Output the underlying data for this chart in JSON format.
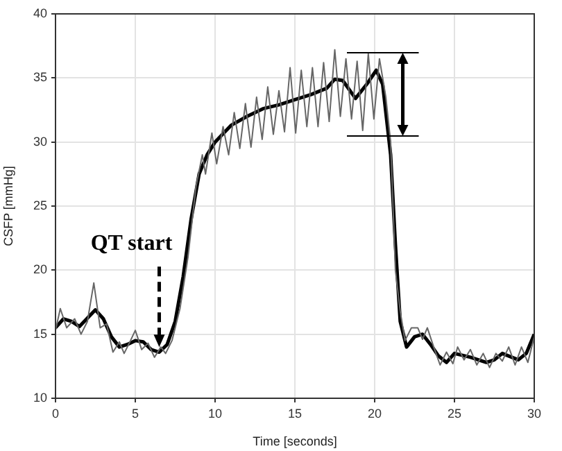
{
  "chart_data": {
    "type": "line",
    "xlabel": "Time [seconds]",
    "ylabel": "CSFP [mmHg]",
    "xlim": [
      0,
      30
    ],
    "xticks": [
      0,
      5,
      10,
      15,
      20,
      25,
      30
    ],
    "ylim": [
      10,
      40
    ],
    "yticks": [
      10,
      15,
      20,
      25,
      30,
      35,
      40
    ],
    "grid": true,
    "legend": false,
    "marker": "none",
    "line_style": "solid",
    "annotations": [
      {
        "text": "QT start",
        "x": 6.5,
        "y": 14
      }
    ],
    "series": [
      {
        "color": "#666666",
        "x": [
          0,
          0.3,
          0.7,
          1.2,
          1.6,
          2.0,
          2.4,
          2.8,
          3.2,
          3.6,
          4.0,
          4.3,
          4.7,
          5.0,
          5.4,
          5.8,
          6.2,
          6.6,
          6.9,
          7.3,
          7.8,
          8.3,
          8.8,
          9.2,
          9.4,
          9.8,
          10.1,
          10.5,
          10.85,
          11.2,
          11.55,
          11.9,
          12.25,
          12.6,
          12.95,
          13.3,
          13.65,
          14.0,
          14.35,
          14.7,
          15.05,
          15.4,
          15.75,
          16.1,
          16.45,
          16.8,
          17.15,
          17.5,
          17.85,
          18.2,
          18.55,
          18.9,
          19.25,
          19.6,
          19.95,
          20.3,
          20.7,
          21.0,
          21.3,
          21.6,
          21.9,
          22.3,
          22.7,
          23.0,
          23.3,
          23.7,
          24.1,
          24.5,
          24.9,
          25.2,
          25.6,
          26.0,
          26.4,
          26.8,
          27.2,
          27.6,
          28.0,
          28.4,
          28.8,
          29.2,
          29.6,
          30
        ],
        "values": [
          15.3,
          17.0,
          15.5,
          16.2,
          15.0,
          16.0,
          19.0,
          15.5,
          15.8,
          13.6,
          14.4,
          13.5,
          14.5,
          15.3,
          13.8,
          14.3,
          13.2,
          14.0,
          13.5,
          14.5,
          17,
          21,
          26.5,
          29.0,
          27.5,
          30.7,
          28.3,
          31.2,
          29.0,
          32.3,
          29.5,
          33.0,
          29.6,
          33.5,
          30.2,
          34.3,
          30.6,
          34.0,
          30.8,
          35.8,
          30.7,
          35.6,
          31.2,
          35.8,
          31.2,
          36.2,
          31.6,
          37.2,
          32.0,
          36.5,
          31.8,
          36.3,
          30.9,
          36.9,
          31.8,
          36.5,
          33.5,
          30,
          20,
          16.8,
          14.5,
          15.5,
          15.5,
          14.6,
          15.5,
          14.0,
          12.6,
          13.6,
          12.7,
          14.0,
          13.0,
          13.8,
          12.6,
          13.5,
          12.4,
          13.5,
          12.9,
          14.0,
          12.6,
          14.0,
          12.8,
          14.8
        ]
      },
      {
        "color": "#000000",
        "x": [
          0,
          0.5,
          1,
          1.5,
          2.5,
          3,
          3.5,
          4,
          4.5,
          5,
          5.5,
          6,
          6.5,
          7,
          7.5,
          8,
          8.5,
          9,
          9.5,
          10,
          11,
          12,
          13,
          14,
          15,
          16,
          17,
          17.5,
          18,
          18.8,
          19.5,
          20.1,
          20.5,
          21,
          21.3,
          21.6,
          22,
          22.5,
          23,
          23.5,
          24,
          24.5,
          25,
          26,
          27,
          27.5,
          28,
          29,
          29.5,
          30
        ],
        "values": [
          15.5,
          16.2,
          16.0,
          15.6,
          16.9,
          16.2,
          14.8,
          14.0,
          14.2,
          14.5,
          14.4,
          13.8,
          13.6,
          14.2,
          16,
          19.5,
          24,
          27.5,
          29,
          30,
          31.3,
          32,
          32.6,
          32.9,
          33.3,
          33.7,
          34.2,
          34.9,
          34.8,
          33.4,
          34.5,
          35.6,
          34.5,
          29,
          22,
          16,
          14,
          14.8,
          15.0,
          14.2,
          13.3,
          12.8,
          13.5,
          13.2,
          12.8,
          13.0,
          13.5,
          13.0,
          13.5,
          15.0
        ]
      }
    ]
  }
}
